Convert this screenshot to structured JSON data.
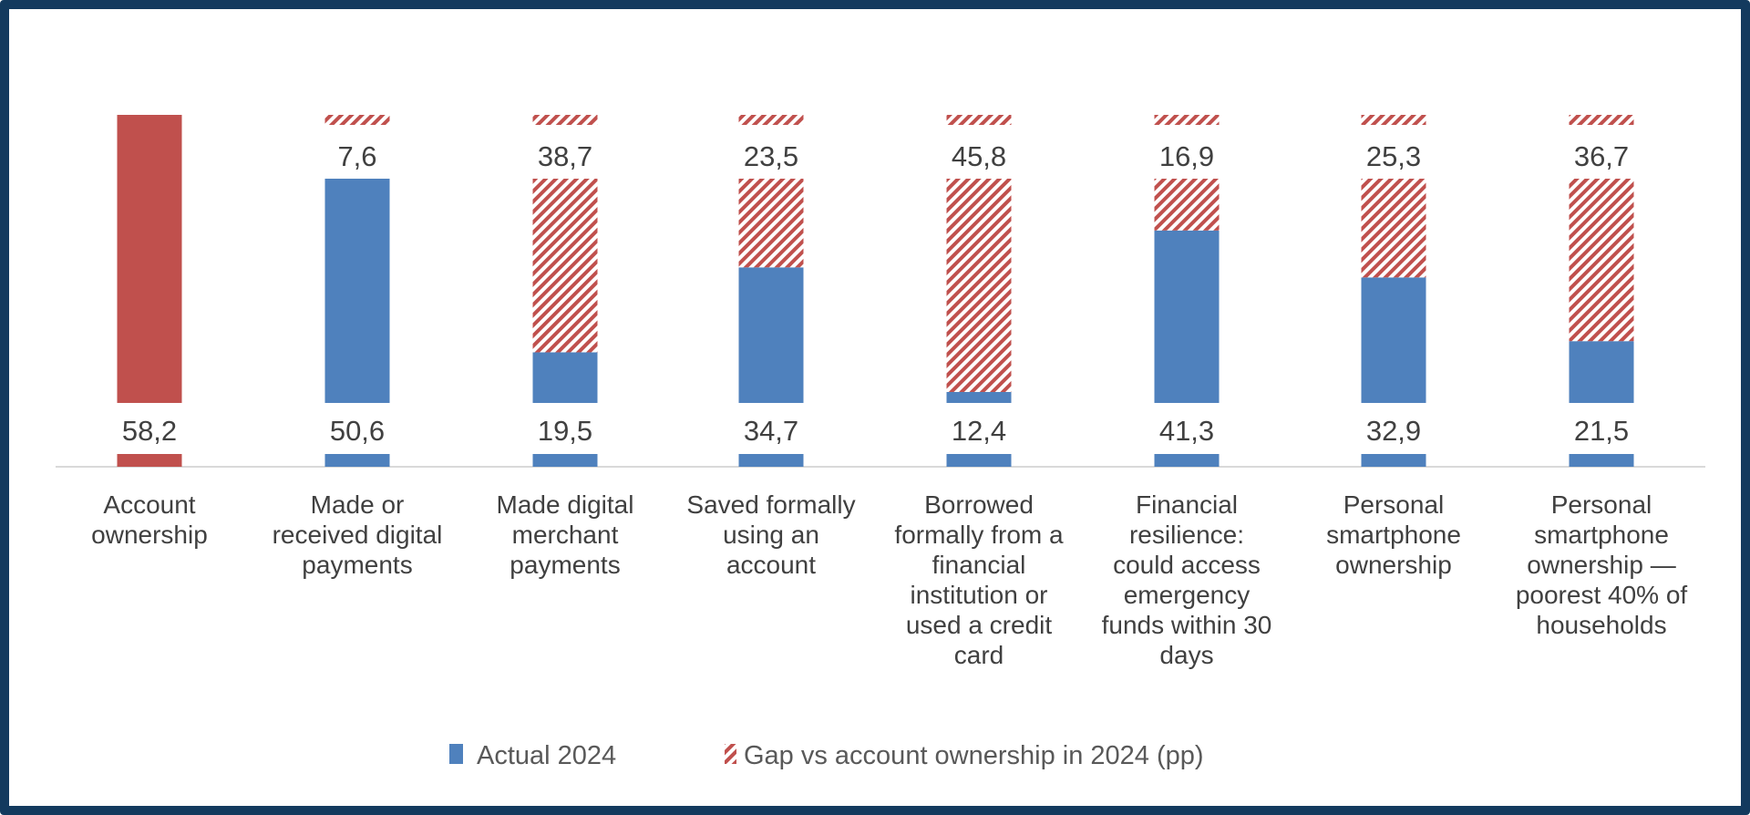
{
  "chart_data": {
    "type": "bar",
    "stacked": true,
    "categories": [
      [
        "Account",
        "ownership"
      ],
      [
        "Made or",
        "received digital",
        "payments"
      ],
      [
        "Made digital",
        "merchant",
        "payments"
      ],
      [
        "Saved formally",
        "using an",
        "account"
      ],
      [
        "Borrowed",
        "formally from a",
        "financial",
        "institution or",
        "used a credit",
        "card"
      ],
      [
        "Financial",
        "resilience:",
        "could access",
        "emergency",
        "funds within 30",
        "days"
      ],
      [
        "Personal",
        "smartphone",
        "ownership"
      ],
      [
        "Personal",
        "smartphone",
        "ownership —",
        "poorest 40% of",
        "households"
      ]
    ],
    "series": [
      {
        "name": "Actual 2024",
        "values": [
          58.2,
          50.6,
          19.5,
          34.7,
          12.4,
          41.3,
          32.9,
          21.5
        ]
      },
      {
        "name": "Gap vs account ownership in 2024 (pp)",
        "values": [
          null,
          7.6,
          38.7,
          23.5,
          45.8,
          16.9,
          25.3,
          36.7
        ]
      }
    ],
    "value_labels": {
      "actual": [
        "58,2",
        "50,6",
        "19,5",
        "34,7",
        "12,4",
        "41,3",
        "32,9",
        "21,5"
      ],
      "gap": [
        "",
        "7,6",
        "38,7",
        "23,5",
        "45,8",
        "16,9",
        "25,3",
        "36,7"
      ]
    },
    "highlight_category_color": "#C0504D",
    "colors": {
      "actual": "#4F81BD",
      "gap_hatch": "#C0504D",
      "frame": "#133A5E",
      "axis": "#D9D9D9"
    },
    "gap_pattern": "diagonal-hatch",
    "legend": {
      "position": "bottom",
      "items": [
        "Actual 2024",
        "Gap vs account ownership in 2024 (pp)"
      ]
    },
    "y_axis_visible": false,
    "grid": false
  }
}
